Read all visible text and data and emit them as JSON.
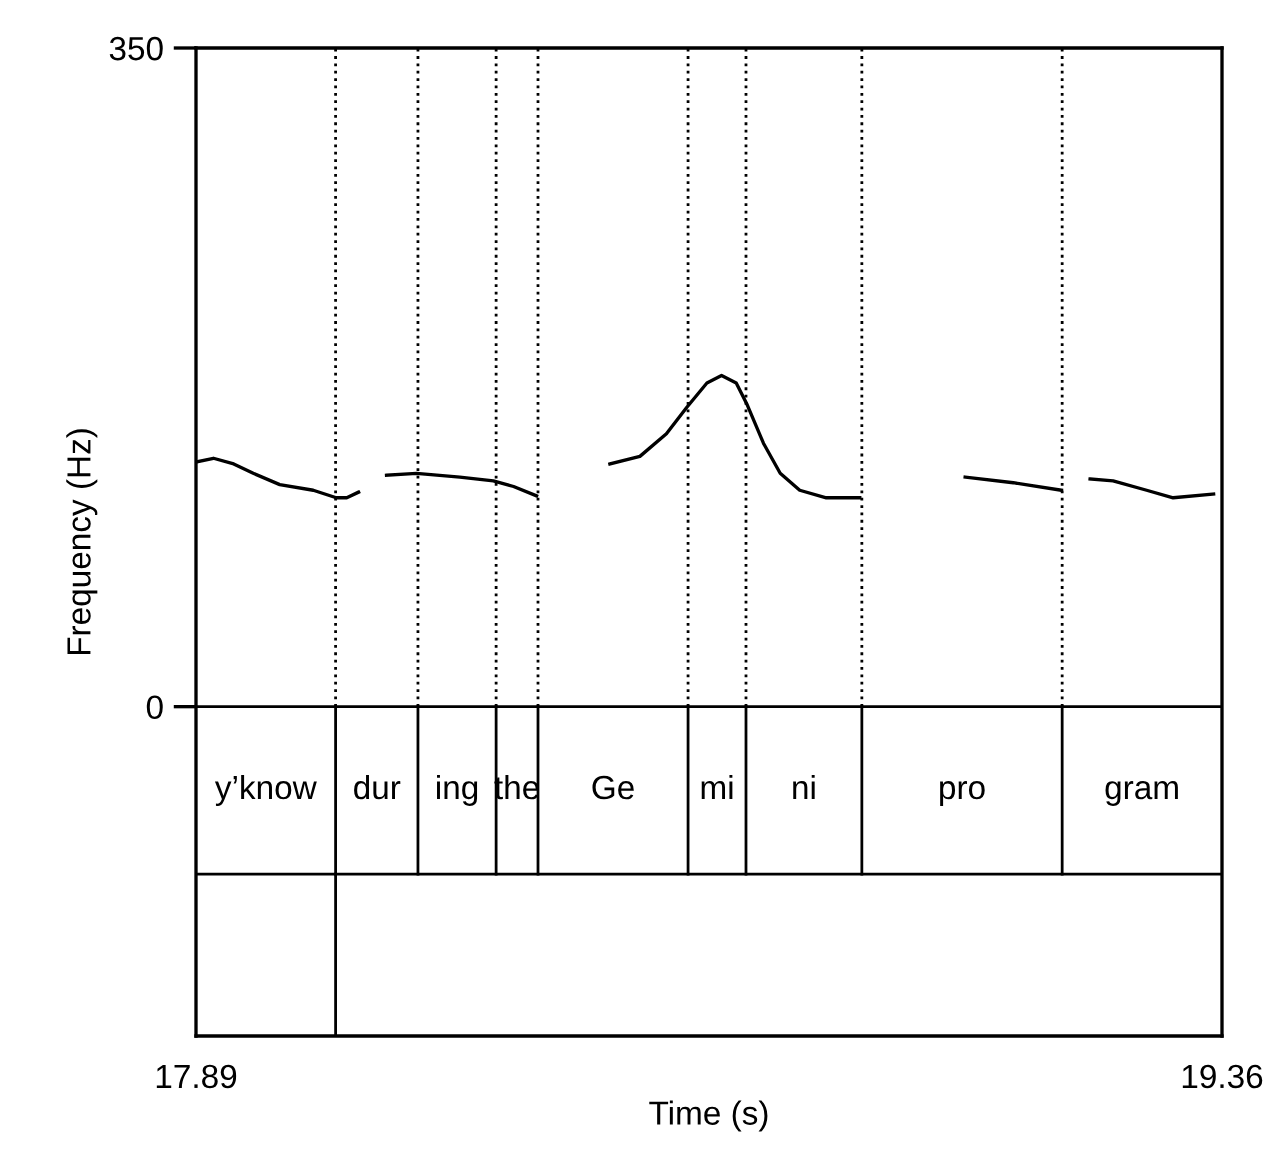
{
  "chart_data": {
    "type": "line",
    "xlabel": "Time (s)",
    "ylabel": "Frequency (Hz)",
    "xlim": [
      17.89,
      19.36
    ],
    "xticks": [
      17.89,
      19.36
    ],
    "ylim": [
      -175,
      350
    ],
    "yticks": [
      0,
      350
    ],
    "grid": false,
    "legend": false,
    "marker": "none",
    "line_style": "solid",
    "series": [
      {
        "color": "#000000",
        "x": [
          17.89,
          17.915,
          17.944,
          17.972,
          18.01,
          18.058,
          18.091,
          18.106,
          18.123,
          18.14,
          18.163,
          18.206,
          18.268,
          18.316,
          18.345,
          18.378,
          18.43,
          18.483,
          18.526,
          18.564,
          18.593,
          18.622,
          18.643,
          18.664,
          18.679,
          18.703,
          18.727,
          18.755,
          18.793,
          18.841,
          18.92,
          18.992,
          19.061,
          19.13,
          19.15,
          19.171,
          19.204,
          19.252,
          19.29,
          19.348
        ],
        "values": [
          130,
          132,
          129,
          124,
          118,
          115,
          111,
          111,
          114,
          null,
          123,
          124,
          122,
          120,
          117,
          112,
          null,
          129,
          133,
          145,
          159,
          172,
          176,
          172,
          161,
          140,
          124,
          115,
          111,
          111,
          null,
          122,
          119,
          115,
          null,
          121,
          120,
          115,
          111,
          113
        ]
      }
    ],
    "annotations": [
      "y’know",
      "dur",
      "ing",
      "the",
      "Ge",
      "mi",
      "ni",
      "pro",
      "gram"
    ],
    "ref_lines": [
      {
        "axis": "y",
        "value": 0,
        "line_style": "solid"
      },
      {
        "axis": "y",
        "value": -89,
        "line_style": "solid"
      },
      {
        "axis": "x",
        "value": 18.09,
        "line_style": "dotted"
      },
      {
        "axis": "x",
        "value": 18.208,
        "line_style": "dotted"
      },
      {
        "axis": "x",
        "value": 18.32,
        "line_style": "dotted"
      },
      {
        "axis": "x",
        "value": 18.38,
        "line_style": "dotted"
      },
      {
        "axis": "x",
        "value": 18.595,
        "line_style": "dotted"
      },
      {
        "axis": "x",
        "value": 18.678,
        "line_style": "dotted"
      },
      {
        "axis": "x",
        "value": 18.844,
        "line_style": "dotted"
      },
      {
        "axis": "x",
        "value": 19.131,
        "line_style": "dotted"
      },
      {
        "axis": "x",
        "value": 18.09,
        "line_style": "solid"
      }
    ]
  }
}
